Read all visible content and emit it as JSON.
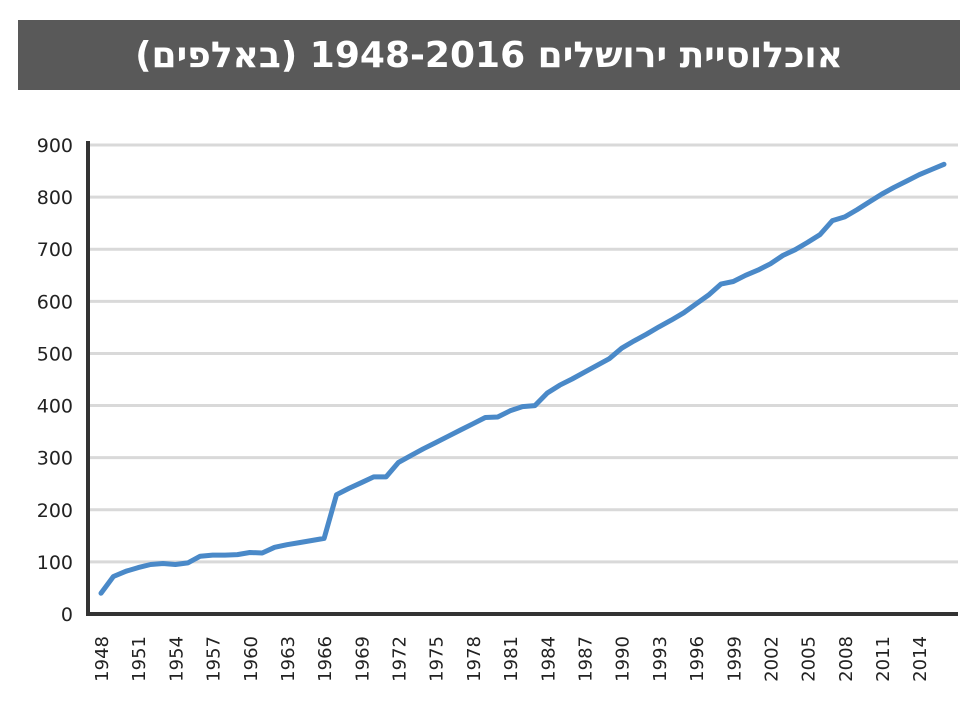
{
  "chart_data": {
    "type": "line",
    "title": "אוכלוסיית ירושלים 1948-2016 (באלפים)",
    "xlabel": "",
    "ylabel": "",
    "xlim": [
      1948,
      2016
    ],
    "ylim": [
      0,
      900
    ],
    "y_ticks": [
      0,
      100,
      200,
      300,
      400,
      500,
      600,
      700,
      800,
      900
    ],
    "x_ticks": [
      1948,
      1951,
      1954,
      1957,
      1960,
      1963,
      1966,
      1969,
      1972,
      1975,
      1978,
      1981,
      1984,
      1987,
      1990,
      1993,
      1996,
      1999,
      2002,
      2005,
      2008,
      2011,
      2014
    ],
    "grid": true,
    "color": "#4a89c8",
    "series": [
      {
        "x": [
          1948,
          1949,
          1950,
          1951,
          1952,
          1953,
          1954,
          1955,
          1956,
          1957,
          1958,
          1959,
          1960,
          1961,
          1962,
          1963,
          1964,
          1965,
          1966,
          1967,
          1968,
          1969,
          1970,
          1971,
          1972,
          1973,
          1974,
          1975,
          1976,
          1977,
          1978,
          1979,
          1980,
          1981,
          1982,
          1983,
          1984,
          1985,
          1986,
          1987,
          1988,
          1989,
          1990,
          1991,
          1992,
          1993,
          1994,
          1995,
          1996,
          1997,
          1998,
          1999,
          2000,
          2001,
          2002,
          2003,
          2004,
          2005,
          2006,
          2007,
          2008,
          2009,
          2010,
          2011,
          2012,
          2013,
          2014,
          2015,
          2016
        ],
        "values": [
          40,
          72,
          82,
          89,
          95,
          97,
          95,
          98,
          111,
          113,
          113,
          114,
          118,
          117,
          128,
          133,
          137,
          141,
          145,
          229,
          241,
          252,
          263,
          263,
          291,
          304,
          317,
          329,
          341,
          353,
          365,
          377,
          378,
          390,
          398,
          400,
          424,
          439,
          451,
          464,
          477,
          490,
          510,
          524,
          537,
          551,
          564,
          578,
          595,
          612,
          633,
          638,
          650,
          660,
          672,
          688,
          699,
          713,
          728,
          755,
          762,
          776,
          791,
          806,
          819,
          831,
          843,
          853,
          863
        ]
      }
    ]
  }
}
